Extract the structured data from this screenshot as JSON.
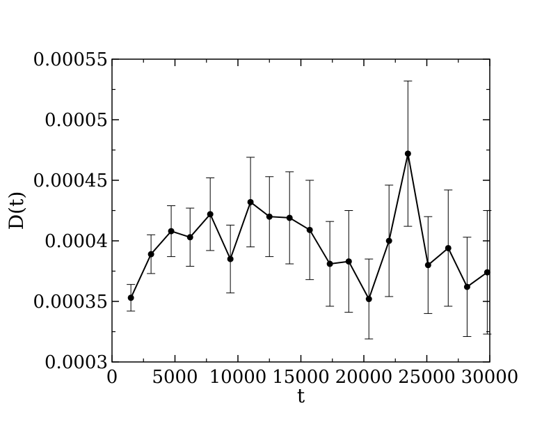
{
  "chart_data": {
    "type": "scatter",
    "title": "",
    "xlabel": "t",
    "ylabel": "D(t)",
    "xlim": [
      0,
      30000
    ],
    "ylim": [
      0.0003,
      0.00055
    ],
    "x_ticks": [
      0,
      5000,
      10000,
      15000,
      20000,
      25000,
      30000
    ],
    "x_tick_labels": [
      "0",
      "5000",
      "10000",
      "15000",
      "20000",
      "25000",
      "30000"
    ],
    "y_ticks": [
      0.0003,
      0.00035,
      0.0004,
      0.00045,
      0.0005,
      0.00055
    ],
    "y_tick_labels": [
      "0.0003",
      "0.00035",
      "0.0004",
      "0.00045",
      "0.0005",
      "0.00055"
    ],
    "grid": false,
    "legend": "none",
    "line_connected": true,
    "colors": {
      "series": "#000000",
      "axes": "#000000",
      "background": "#ffffff"
    },
    "series": [
      {
        "x": [
          1500,
          3100,
          4700,
          6200,
          7800,
          9400,
          11000,
          12500,
          14100,
          15700,
          17300,
          18800,
          20400,
          22000,
          23500,
          25100,
          26700,
          28200,
          29800
        ],
        "y": [
          0.000353,
          0.000389,
          0.000408,
          0.000403,
          0.000422,
          0.000385,
          0.000432,
          0.00042,
          0.000419,
          0.000409,
          0.000381,
          0.000383,
          0.000352,
          0.0004,
          0.000472,
          0.00038,
          0.000394,
          0.000362,
          0.000374
        ],
        "y_err": [
          1.1e-05,
          1.6e-05,
          2.1e-05,
          2.4e-05,
          3e-05,
          2.8e-05,
          3.7e-05,
          3.3e-05,
          3.8e-05,
          4.1e-05,
          3.5e-05,
          4.2e-05,
          3.3e-05,
          4.6e-05,
          6e-05,
          4e-05,
          4.8e-05,
          4.1e-05,
          5.1e-05
        ]
      }
    ]
  }
}
